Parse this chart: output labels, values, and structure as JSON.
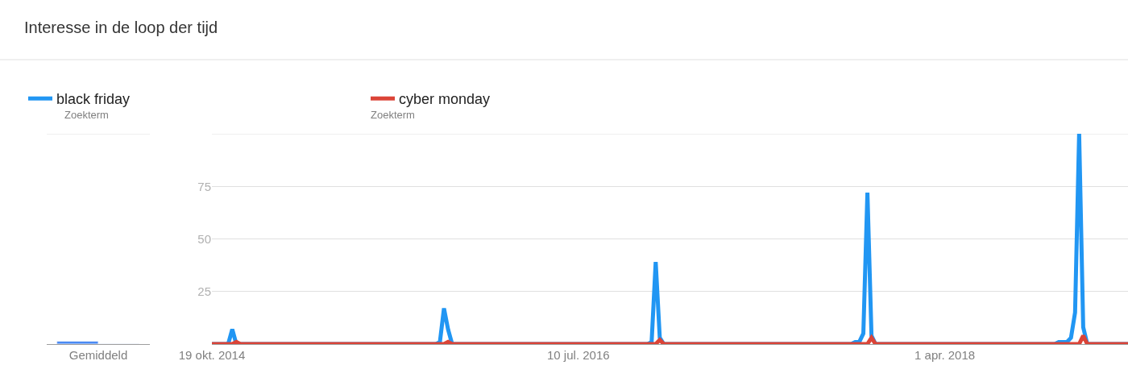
{
  "chart_data": [
    {
      "type": "bar",
      "title": "Interesse in de loop der tijd",
      "categories": [
        "Gemiddeld"
      ],
      "ylim": [
        0,
        100
      ],
      "yticks": [
        {
          "value": 100,
          "label": null
        }
      ],
      "tick_labels": "x",
      "grid": "y",
      "series": [
        {
          "color": "#4285f4",
          "values": [
            1
          ]
        },
        {
          "color": "#db4437",
          "values": [
            0
          ]
        }
      ]
    },
    {
      "type": "line",
      "annotations": [
        "Zoekterm",
        "Zoekterm"
      ],
      "xlim": [
        "2014-10-19",
        "2019-02-10"
      ],
      "ylim": [
        0,
        100
      ],
      "xticks": [
        {
          "value": "2014-10-19",
          "label": "19 okt. 2014"
        },
        {
          "value": "2016-07-10",
          "label": "10 jul. 2016"
        },
        {
          "value": "2018-04-01",
          "label": "1 apr. 2018"
        }
      ],
      "yticks": [
        25,
        50,
        75,
        {
          "value": 100,
          "label": null
        }
      ],
      "grid": "y",
      "legend": "top left",
      "marker": "none",
      "line_style": "solid",
      "series": [
        {
          "name": "black friday",
          "color": "#2196f3",
          "x": [
            "2014-10-19",
            "2014-11-16",
            "2014-11-23",
            "2014-11-30",
            "2015-11-08",
            "2015-11-15",
            "2015-11-22",
            "2015-11-29",
            "2015-12-06",
            "2016-11-06",
            "2016-11-13",
            "2016-11-20",
            "2016-11-27",
            "2016-12-04",
            "2017-10-22",
            "2017-10-29",
            "2017-11-05",
            "2017-11-12",
            "2017-11-19",
            "2017-11-26",
            "2017-12-03",
            "2018-10-07",
            "2018-10-14",
            "2018-10-21",
            "2018-10-28",
            "2018-11-04",
            "2018-11-11",
            "2018-11-18",
            "2018-11-25",
            "2018-12-02",
            "2019-02-10"
          ],
          "values": [
            0,
            0,
            7,
            0,
            0,
            1,
            17,
            7,
            0,
            0,
            1,
            39,
            3,
            0,
            0,
            1,
            1,
            5,
            72,
            4,
            0,
            0,
            1,
            1,
            1,
            3,
            15,
            100,
            8,
            0,
            0
          ]
        },
        {
          "name": "cyber monday",
          "color": "#db4437",
          "x": [
            "2014-10-19",
            "2014-11-23",
            "2014-11-30",
            "2014-12-07",
            "2015-11-22",
            "2015-11-29",
            "2015-12-06",
            "2016-11-20",
            "2016-11-27",
            "2016-12-04",
            "2017-11-19",
            "2017-11-26",
            "2017-12-03",
            "2018-11-18",
            "2018-11-25",
            "2018-12-02",
            "2019-02-10"
          ],
          "values": [
            0,
            0,
            1,
            0,
            0,
            1,
            0,
            0,
            2,
            0,
            0,
            3,
            0,
            0,
            4,
            0,
            0
          ]
        }
      ]
    }
  ]
}
